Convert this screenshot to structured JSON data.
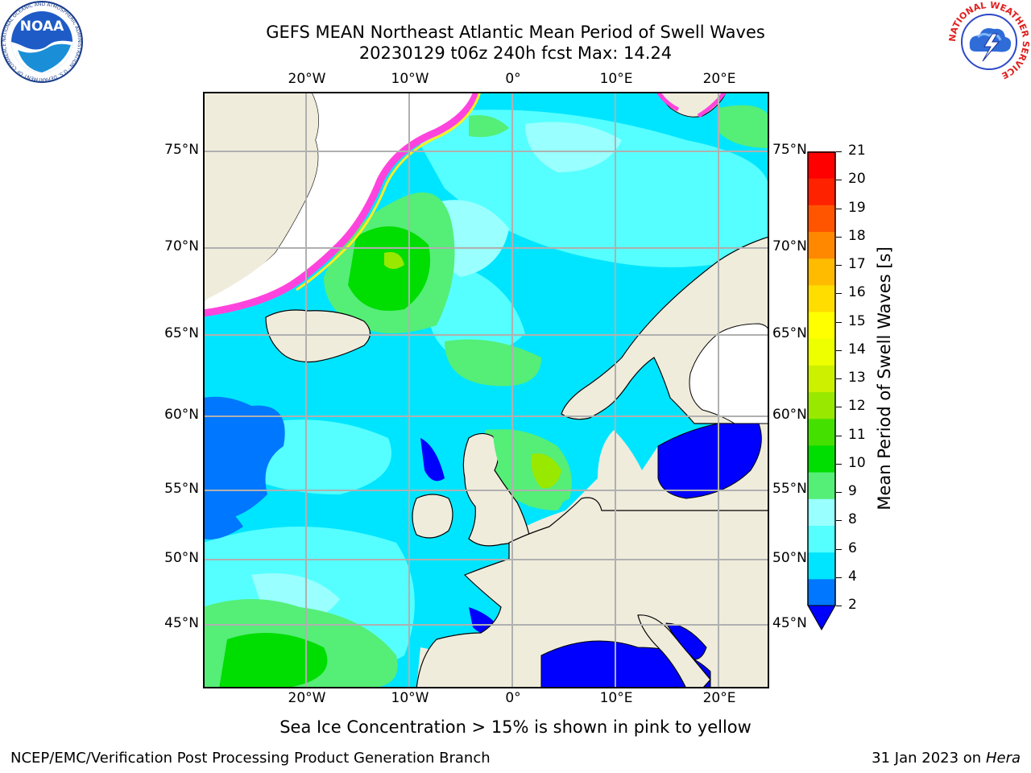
{
  "header": {
    "title_line1": "GEFS MEAN Northeast Atlantic Mean Period of Swell Waves",
    "title_line2": "20230129 t06z 240h fcst   Max: 14.24"
  },
  "logos": {
    "left": "NOAA",
    "left_ring": "NATIONAL OCEANIC AND ATMOSPHERIC ADMINISTRATION · U.S. DEPARTMENT OF COMMERCE",
    "right_ring": "NATIONAL WEATHER SERVICE"
  },
  "map": {
    "lon_labels": [
      "20°W",
      "10°W",
      "0°",
      "10°E",
      "20°E"
    ],
    "lat_labels": [
      "75°N",
      "70°N",
      "65°N",
      "60°N",
      "55°N",
      "50°N",
      "45°N"
    ],
    "colors": {
      "land": "#efecdc",
      "ice_white": "#ffffff",
      "ice_edge_pink": "#ff44dd",
      "ice_edge_yellow": "#ffee22",
      "grid": "#b0b0b0"
    }
  },
  "colorbar": {
    "label": "Mean Period of Swell Waves [s]",
    "ticks": [
      "21",
      "20",
      "19",
      "18",
      "17",
      "16",
      "15",
      "14",
      "13",
      "12",
      "11",
      "10",
      "9",
      "8",
      "6",
      "4",
      "2"
    ],
    "colors_bottom_to_top": [
      "#0077ff",
      "#00e5ff",
      "#55ffff",
      "#99ffff",
      "#55ee77",
      "#00dd00",
      "#44e000",
      "#99e800",
      "#ccf000",
      "#eeff00",
      "#ffff00",
      "#ffdd00",
      "#ffbb00",
      "#ff8800",
      "#ff5500",
      "#ff2200",
      "#ff0000"
    ],
    "under_color": "#0000ff"
  },
  "note": "Sea Ice Concentration > 15% is shown in pink to yellow",
  "footer": {
    "left": "NCEP/EMC/Verification Post Processing Product Generation Branch",
    "date": "31 Jan 2023 on ",
    "machine": "Hera"
  }
}
